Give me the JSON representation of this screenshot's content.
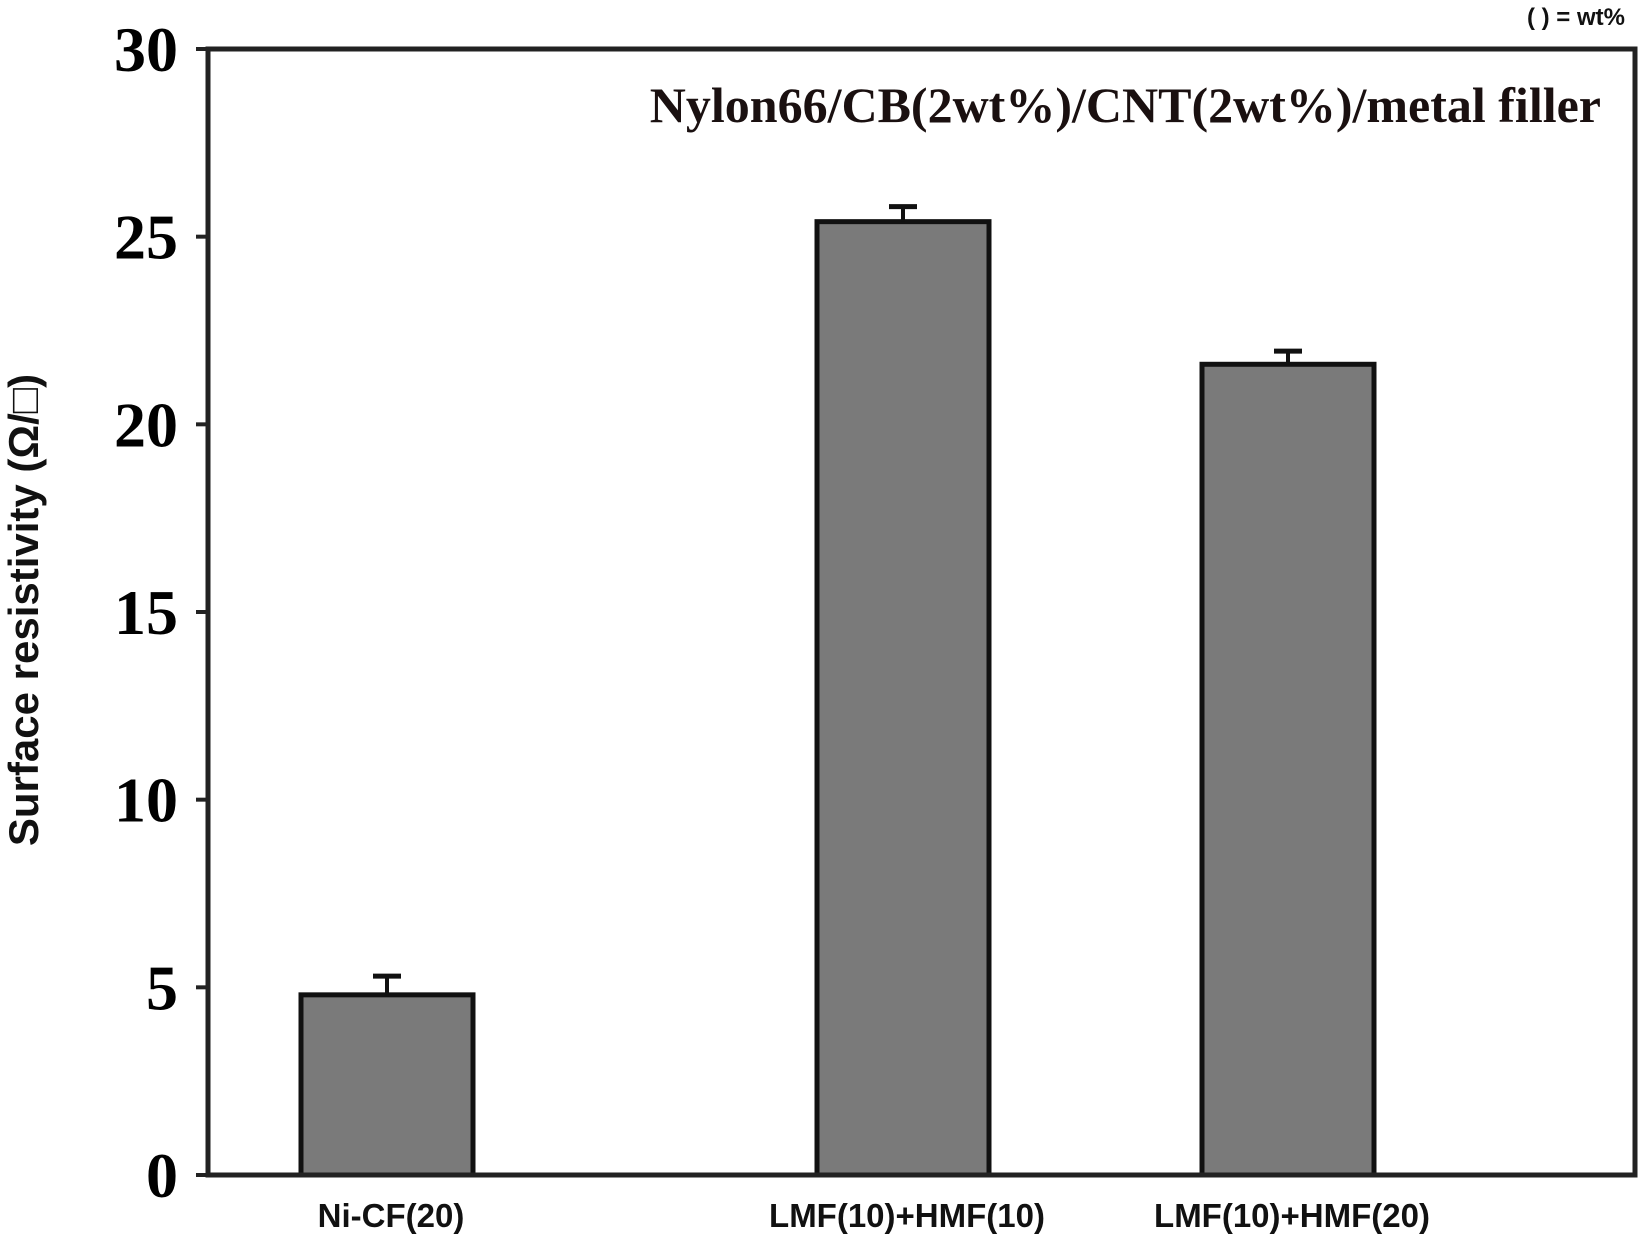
{
  "chart_data": {
    "type": "bar",
    "title": "Nylon66/CB(2wt%)/CNT(2wt%)/metal filler",
    "note": "( ) = wt%",
    "xlabel": "",
    "ylabel": "Surface resistivity (Ω/□)",
    "ylim": [
      0,
      30
    ],
    "yticks": [
      "0",
      "5",
      "10",
      "15",
      "20",
      "25",
      "30"
    ],
    "categories": [
      "Ni-CF(20)",
      "LMF(10)+HMF(10)",
      "LMF(10)+HMF(20)"
    ],
    "values": [
      4.8,
      25.4,
      21.6
    ],
    "error": [
      0.5,
      0.4,
      0.35
    ],
    "bar_color": "#7a7a7a",
    "grid": false
  }
}
